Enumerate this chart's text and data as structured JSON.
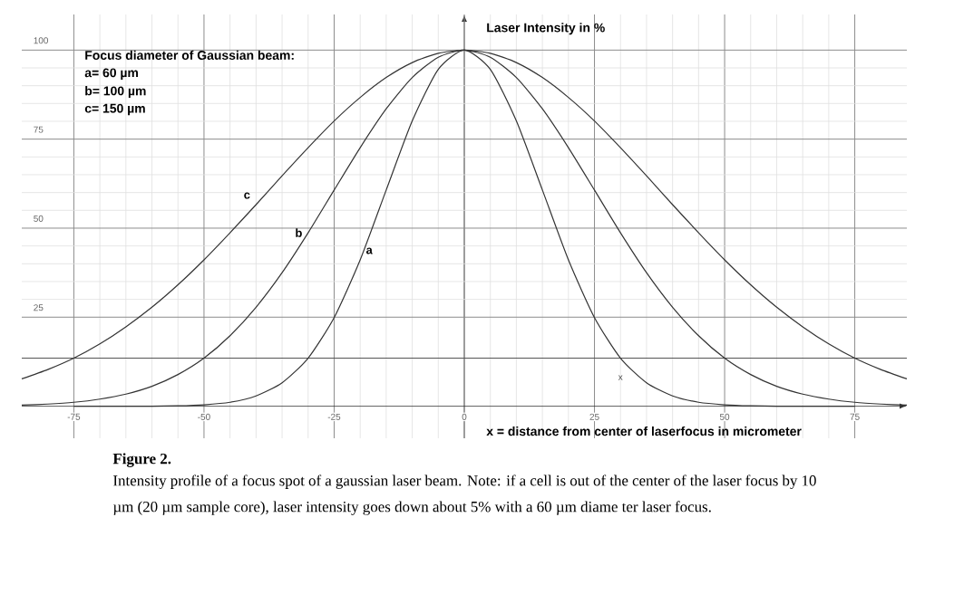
{
  "chart_data": {
    "type": "line",
    "xlabel": "x =  distance from center of laserfocus in micrometer",
    "ylabel": "Laser Intensity in %",
    "x": [
      -85,
      -80,
      -75,
      -70,
      -65,
      -60,
      -55,
      -50,
      -45,
      -40,
      -35,
      -30,
      -25,
      -20,
      -15,
      -10,
      -5,
      0,
      5,
      10,
      15,
      20,
      25,
      30,
      35,
      40,
      45,
      50,
      55,
      60,
      65,
      70,
      75,
      80,
      85
    ],
    "series": [
      {
        "name": "a",
        "color": "#333333",
        "x": [
          -75,
          -70,
          -65,
          -60,
          -55,
          -50,
          -45,
          -40,
          -35,
          -30,
          -25,
          -20,
          -15,
          -10,
          -5,
          0,
          5,
          10,
          15,
          20,
          25,
          30,
          35,
          40,
          45,
          50,
          55,
          60,
          65,
          70,
          75
        ],
        "values": [
          0.0,
          0.0,
          0.0,
          0.0,
          0.1,
          0.4,
          1.1,
          2.9,
          6.6,
          13.5,
          24.9,
          41.1,
          60.7,
          80.1,
          94.6,
          100,
          94.6,
          80.1,
          60.7,
          41.1,
          24.9,
          13.5,
          6.6,
          2.9,
          1.1,
          0.4,
          0.1,
          0.0,
          0.0,
          0.0,
          0.0
        ]
      },
      {
        "name": "b",
        "color": "#333333",
        "values": [
          0.3,
          0.6,
          1.1,
          2.0,
          3.4,
          5.6,
          8.9,
          13.5,
          19.8,
          27.8,
          37.5,
          48.7,
          60.7,
          72.6,
          83.5,
          92.3,
          98.0,
          100,
          98.0,
          92.3,
          83.5,
          72.6,
          60.7,
          48.7,
          37.5,
          27.8,
          19.8,
          13.5,
          8.9,
          5.6,
          3.4,
          2.0,
          1.1,
          0.6,
          0.3
        ]
      },
      {
        "name": "c",
        "color": "#333333",
        "values": [
          7.7,
          10.3,
          13.5,
          17.5,
          22.3,
          27.8,
          34.1,
          41.1,
          48.7,
          56.6,
          64.7,
          72.6,
          80.1,
          86.7,
          92.3,
          96.5,
          99.1,
          100,
          99.1,
          96.5,
          92.3,
          86.7,
          80.1,
          72.6,
          64.7,
          56.6,
          48.7,
          41.1,
          34.1,
          27.8,
          22.3,
          17.5,
          13.5,
          10.3,
          7.7
        ]
      }
    ],
    "xlim": [
      -85,
      85
    ],
    "ylim": [
      -9,
      110
    ],
    "xticks": [
      -75,
      -50,
      -25,
      0,
      25,
      50,
      75
    ],
    "yticks": [
      25,
      50,
      75,
      100
    ],
    "grid": true,
    "marker": "none",
    "line_style": "solid",
    "ref_lines": [
      {
        "axis": "y",
        "value": 13.5,
        "color": "#555555"
      }
    ],
    "annotations": [
      "Focus diameter of Gaussian beam:",
      "a=   60 µm",
      "b= 100 µm",
      "c= 150 µm",
      "x",
      "Figure 2.",
      "Intensity profile of a focus spot of a gaussian laser beam. Note: if a cell is out of the center of the laser focus by 10 µm (20 µm sample core), laser intensity goes down about 5% with a 60 µm diame ter laser focus."
    ]
  }
}
